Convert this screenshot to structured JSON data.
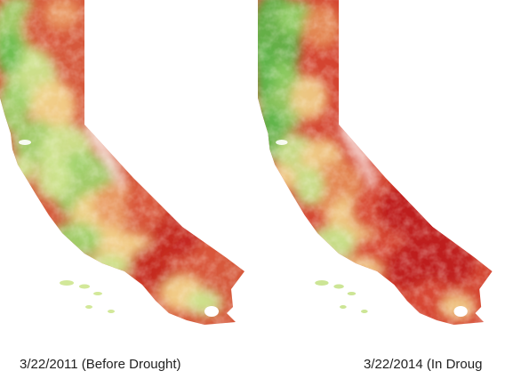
{
  "panels": [
    {
      "caption": "3/22/2011 (Before Drought)",
      "palette": [
        "#6cbd4e",
        "#9fd26c",
        "#cde58e",
        "#f2d28a",
        "#e99861",
        "#d9553a",
        "#c4261f"
      ],
      "dominant_color": "#d6593c"
    },
    {
      "caption": "3/22/2014 (In Droug",
      "palette": [
        "#5fb44a",
        "#8fcc63",
        "#c6e28a",
        "#f0c985",
        "#e58a55",
        "#d84631",
        "#be1d1c"
      ],
      "dominant_color": "#d44430"
    }
  ],
  "colors": {
    "background": "#ffffff",
    "caption_text": "#222222"
  }
}
